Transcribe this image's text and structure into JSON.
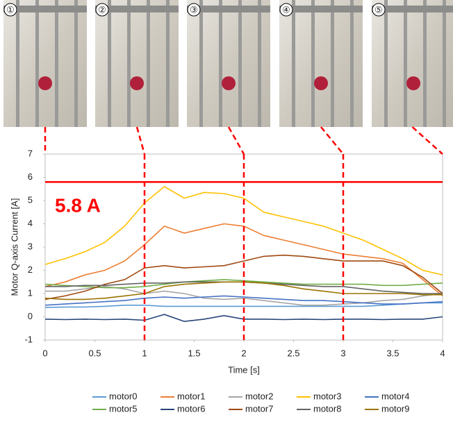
{
  "photos": {
    "labels": [
      "①",
      "②",
      "③",
      "④",
      "⑤"
    ]
  },
  "chart_data": {
    "type": "line",
    "xlabel": "Time [s]",
    "ylabel": "Motor Q-axis  Current [A]",
    "x": [
      0,
      0.2,
      0.4,
      0.6,
      0.8,
      1.0,
      1.2,
      1.4,
      1.6,
      1.8,
      2.0,
      2.2,
      2.4,
      2.6,
      2.8,
      3.0,
      3.2,
      3.4,
      3.6,
      3.8,
      4.0
    ],
    "xlim": [
      0,
      4
    ],
    "xticks": [
      0,
      0.5,
      1,
      1.5,
      2,
      2.5,
      3,
      3.5,
      4
    ],
    "ylim": [
      -1,
      7
    ],
    "yticks": [
      -1,
      0,
      1,
      2,
      3,
      4,
      5,
      6,
      7
    ],
    "grid": false,
    "threshold": {
      "value": 5.8,
      "label": "5.8 A",
      "color": "#ff0000"
    },
    "frame_times": [
      0,
      1,
      2,
      3,
      4
    ],
    "series": [
      {
        "name": "motor0",
        "color": "#5b9bd5",
        "values": [
          0.4,
          0.42,
          0.42,
          0.45,
          0.5,
          0.5,
          0.45,
          0.45,
          0.45,
          0.45,
          0.45,
          0.45,
          0.45,
          0.45,
          0.45,
          0.45,
          0.45,
          0.5,
          0.55,
          0.6,
          0.6
        ]
      },
      {
        "name": "motor1",
        "color": "#ed7d31",
        "values": [
          1.3,
          1.5,
          1.8,
          2.0,
          2.4,
          3.1,
          3.9,
          3.6,
          3.8,
          4.0,
          3.9,
          3.5,
          3.3,
          3.1,
          2.9,
          2.7,
          2.6,
          2.5,
          2.3,
          1.6,
          0.9
        ]
      },
      {
        "name": "motor2",
        "color": "#a5a5a5",
        "values": [
          1.1,
          1.1,
          1.2,
          1.3,
          1.2,
          1.0,
          1.1,
          1.0,
          0.8,
          0.75,
          0.8,
          0.7,
          0.6,
          0.5,
          0.5,
          0.55,
          0.6,
          0.7,
          0.75,
          0.9,
          1.0
        ]
      },
      {
        "name": "motor3",
        "color": "#ffc000",
        "values": [
          2.25,
          2.5,
          2.8,
          3.2,
          3.9,
          4.9,
          5.6,
          5.1,
          5.35,
          5.3,
          5.1,
          4.5,
          4.3,
          4.1,
          3.9,
          3.6,
          3.3,
          2.9,
          2.5,
          2.0,
          1.8
        ]
      },
      {
        "name": "motor4",
        "color": "#4472c4",
        "values": [
          0.5,
          0.55,
          0.6,
          0.65,
          0.7,
          0.8,
          0.85,
          0.8,
          0.85,
          0.9,
          0.85,
          0.8,
          0.75,
          0.7,
          0.7,
          0.65,
          0.6,
          0.55,
          0.55,
          0.6,
          0.65
        ]
      },
      {
        "name": "motor5",
        "color": "#70ad47",
        "values": [
          1.4,
          1.35,
          1.3,
          1.25,
          1.25,
          1.3,
          1.4,
          1.5,
          1.55,
          1.6,
          1.55,
          1.5,
          1.45,
          1.4,
          1.4,
          1.4,
          1.4,
          1.35,
          1.35,
          1.4,
          1.45
        ]
      },
      {
        "name": "motor6",
        "color": "#264478",
        "values": [
          -0.1,
          -0.12,
          -0.1,
          -0.12,
          -0.1,
          -0.15,
          0.1,
          -0.2,
          -0.1,
          0.05,
          -0.1,
          -0.1,
          -0.12,
          -0.1,
          -0.12,
          -0.1,
          -0.1,
          -0.12,
          -0.1,
          -0.1,
          0.0
        ]
      },
      {
        "name": "motor7",
        "color": "#9e480e",
        "values": [
          0.75,
          0.9,
          1.1,
          1.4,
          1.6,
          2.1,
          2.2,
          2.1,
          2.15,
          2.2,
          2.4,
          2.6,
          2.65,
          2.6,
          2.5,
          2.4,
          2.4,
          2.4,
          2.2,
          1.7,
          1.0
        ]
      },
      {
        "name": "motor8",
        "color": "#636363",
        "values": [
          1.3,
          1.3,
          1.35,
          1.35,
          1.4,
          1.45,
          1.45,
          1.5,
          1.5,
          1.5,
          1.5,
          1.45,
          1.4,
          1.35,
          1.3,
          1.3,
          1.2,
          1.1,
          1.05,
          1.0,
          1.0
        ]
      },
      {
        "name": "motor9",
        "color": "#997300",
        "values": [
          0.8,
          0.75,
          0.75,
          0.8,
          0.9,
          1.0,
          1.3,
          1.4,
          1.45,
          1.5,
          1.5,
          1.45,
          1.35,
          1.2,
          1.1,
          1.0,
          1.0,
          1.0,
          1.0,
          0.95,
          0.95
        ]
      }
    ]
  }
}
